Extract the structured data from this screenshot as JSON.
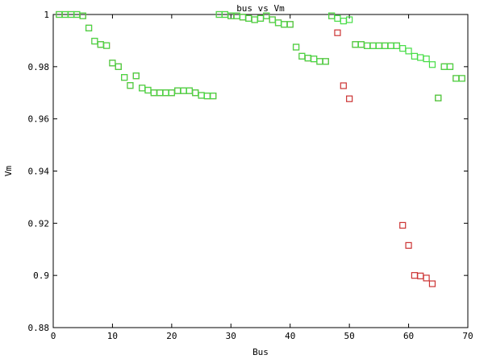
{
  "chart_data": {
    "type": "scatter",
    "title": "bus vs Vm",
    "xlabel": "Bus",
    "ylabel": "Vm",
    "xlim": [
      0,
      70
    ],
    "ylim": [
      0.88,
      1.0
    ],
    "xticks": [
      0,
      10,
      20,
      30,
      40,
      50,
      60,
      70
    ],
    "yticks": [
      0.88,
      0.9,
      0.92,
      0.94,
      0.96,
      0.98,
      1.0
    ],
    "ytick_labels": [
      "0.88",
      "0.9",
      "0.92",
      "0.94",
      "0.96",
      "0.98",
      "1"
    ],
    "grid": false,
    "legend": "none",
    "marker": "square-open",
    "series": [
      {
        "color": "#cc3333",
        "x": [
          1,
          2,
          3,
          4,
          5,
          6,
          7,
          8,
          9,
          10,
          11,
          12,
          13,
          14,
          15,
          16,
          17,
          18,
          19,
          20,
          21,
          22,
          23,
          24,
          25,
          26,
          27,
          28,
          29,
          30,
          31,
          32,
          33,
          34,
          35,
          36,
          37,
          38,
          39,
          40,
          41,
          42,
          43,
          44,
          45,
          46,
          47,
          48,
          49,
          50,
          51,
          52,
          53,
          54,
          55,
          56,
          57,
          58,
          59,
          60,
          61,
          62,
          63,
          64,
          65,
          66,
          67,
          68,
          69
        ],
        "y": [
          1.0,
          1.0,
          1.0,
          1.0,
          0.9995,
          0.9948,
          0.9898,
          0.9885,
          0.9881,
          0.9814,
          0.98,
          0.9759,
          0.9728,
          0.9765,
          0.9718,
          0.971,
          0.97,
          0.97,
          0.97,
          0.97,
          0.9708,
          0.9708,
          0.9708,
          0.97,
          0.969,
          0.9688,
          0.9688,
          1.0,
          1.0,
          0.9995,
          0.9995,
          0.999,
          0.9985,
          0.998,
          0.9985,
          0.9995,
          0.998,
          0.9968,
          0.9962,
          0.9962,
          0.9875,
          0.984,
          0.9833,
          0.983,
          0.982,
          0.982,
          0.9995,
          0.993,
          0.9727,
          0.9677,
          0.9885,
          0.9885,
          0.988,
          0.988,
          0.988,
          0.988,
          0.988,
          0.988,
          0.9192,
          0.9115,
          0.9,
          0.8998,
          0.899,
          0.8968,
          0.968,
          0.98,
          0.98,
          0.9755,
          0.9755
        ]
      },
      {
        "color": "#44dd44",
        "x": [
          1,
          2,
          3,
          4,
          5,
          6,
          7,
          8,
          9,
          10,
          11,
          12,
          13,
          14,
          15,
          16,
          17,
          18,
          19,
          20,
          21,
          22,
          23,
          24,
          25,
          26,
          27,
          28,
          29,
          30,
          31,
          32,
          33,
          34,
          35,
          36,
          37,
          38,
          39,
          40,
          41,
          42,
          43,
          44,
          45,
          46,
          47,
          48,
          49,
          50,
          51,
          52,
          53,
          54,
          55,
          56,
          57,
          58,
          59,
          60,
          61,
          62,
          63,
          64,
          65,
          66,
          67,
          68,
          69
        ],
        "y": [
          1.0,
          1.0,
          1.0,
          1.0,
          0.9995,
          0.9948,
          0.9898,
          0.9885,
          0.9881,
          0.9814,
          0.98,
          0.9759,
          0.9728,
          0.9765,
          0.9718,
          0.971,
          0.97,
          0.97,
          0.97,
          0.97,
          0.9708,
          0.9708,
          0.9708,
          0.97,
          0.969,
          0.9688,
          0.9688,
          1.0,
          1.0,
          0.9995,
          0.9995,
          0.999,
          0.9985,
          0.998,
          0.9985,
          0.9995,
          0.998,
          0.9968,
          0.9962,
          0.9962,
          0.9875,
          0.984,
          0.9833,
          0.983,
          0.982,
          0.982,
          0.9995,
          0.9985,
          0.9975,
          0.998,
          0.9885,
          0.9885,
          0.988,
          0.988,
          0.988,
          0.988,
          0.988,
          0.988,
          0.987,
          0.986,
          0.984,
          0.9835,
          0.983,
          0.9808,
          0.968,
          0.98,
          0.98,
          0.9755,
          0.9755
        ]
      }
    ]
  }
}
